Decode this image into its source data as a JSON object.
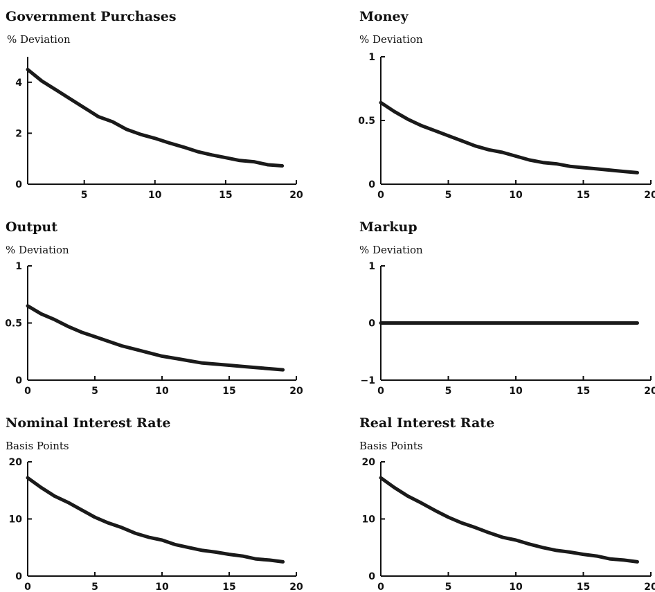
{
  "chart_data": [
    {
      "type": "line",
      "title": "Government Purchases",
      "ylabel": "% Deviation",
      "xlabel": "",
      "xlim": [
        1,
        20
      ],
      "ylim": [
        0,
        5
      ],
      "xticks": [
        5,
        10,
        15,
        20
      ],
      "yticks": [
        0,
        2,
        4
      ],
      "series": [
        {
          "x": [
            1,
            2,
            3,
            4,
            5,
            6,
            7,
            8,
            9,
            10,
            11,
            12,
            13,
            14,
            15,
            16,
            17,
            18,
            19
          ],
          "values": [
            4.5,
            4.05,
            3.7,
            3.35,
            3.0,
            2.65,
            2.45,
            2.15,
            1.95,
            1.8,
            1.62,
            1.46,
            1.28,
            1.15,
            1.04,
            0.93,
            0.88,
            0.76,
            0.72
          ]
        }
      ]
    },
    {
      "type": "line",
      "title": "Money",
      "ylabel": "% Deviation",
      "xlabel": "",
      "xlim": [
        0,
        20
      ],
      "ylim": [
        0,
        1
      ],
      "xticks": [
        0,
        5,
        10,
        15,
        20
      ],
      "yticks": [
        0,
        0.5,
        1
      ],
      "series": [
        {
          "x": [
            0,
            1,
            2,
            3,
            4,
            5,
            6,
            7,
            8,
            9,
            10,
            11,
            12,
            13,
            14,
            15,
            16,
            17,
            18,
            19
          ],
          "values": [
            0.64,
            0.57,
            0.51,
            0.46,
            0.42,
            0.38,
            0.34,
            0.3,
            0.27,
            0.25,
            0.22,
            0.19,
            0.17,
            0.16,
            0.14,
            0.13,
            0.12,
            0.11,
            0.1,
            0.09
          ]
        }
      ]
    },
    {
      "type": "line",
      "title": "Output",
      "ylabel": "% Deviation",
      "xlabel": "",
      "xlim": [
        0,
        20
      ],
      "ylim": [
        0,
        1
      ],
      "xticks": [
        0,
        5,
        10,
        15,
        20
      ],
      "yticks": [
        0,
        0.5,
        1
      ],
      "series": [
        {
          "x": [
            0,
            1,
            2,
            3,
            4,
            5,
            6,
            7,
            8,
            9,
            10,
            11,
            12,
            13,
            14,
            15,
            16,
            17,
            18,
            19
          ],
          "values": [
            0.65,
            0.58,
            0.53,
            0.47,
            0.42,
            0.38,
            0.34,
            0.3,
            0.27,
            0.24,
            0.21,
            0.19,
            0.17,
            0.15,
            0.14,
            0.13,
            0.12,
            0.11,
            0.1,
            0.09
          ]
        }
      ]
    },
    {
      "type": "line",
      "title": "Markup",
      "ylabel": "% Deviation",
      "xlabel": "",
      "xlim": [
        0,
        20
      ],
      "ylim": [
        -1,
        1
      ],
      "xticks": [
        0,
        5,
        10,
        15,
        20
      ],
      "yticks": [
        -1,
        0,
        1
      ],
      "series": [
        {
          "x": [
            0,
            1,
            2,
            3,
            4,
            5,
            6,
            7,
            8,
            9,
            10,
            11,
            12,
            13,
            14,
            15,
            16,
            17,
            18,
            19
          ],
          "values": [
            0,
            0,
            0,
            0,
            0,
            0,
            0,
            0,
            0,
            0,
            0,
            0,
            0,
            0,
            0,
            0,
            0,
            0,
            0,
            0
          ]
        }
      ]
    },
    {
      "type": "line",
      "title": "Nominal Interest Rate",
      "ylabel": "Basis Points",
      "xlabel": "",
      "xlim": [
        0,
        20
      ],
      "ylim": [
        0,
        20
      ],
      "xticks": [
        0,
        5,
        10,
        15,
        20
      ],
      "yticks": [
        0,
        10,
        20
      ],
      "series": [
        {
          "x": [
            0,
            1,
            2,
            3,
            4,
            5,
            6,
            7,
            8,
            9,
            10,
            11,
            12,
            13,
            14,
            15,
            16,
            17,
            18,
            19
          ],
          "values": [
            17.2,
            15.5,
            14.0,
            12.9,
            11.6,
            10.3,
            9.3,
            8.5,
            7.5,
            6.8,
            6.3,
            5.5,
            5.0,
            4.5,
            4.2,
            3.8,
            3.5,
            3.0,
            2.8,
            2.5
          ]
        }
      ]
    },
    {
      "type": "line",
      "title": "Real Interest Rate",
      "ylabel": "Basis Points",
      "xlabel": "",
      "xlim": [
        0,
        20
      ],
      "ylim": [
        0,
        20
      ],
      "xticks": [
        0,
        5,
        10,
        15,
        20
      ],
      "yticks": [
        0,
        10,
        20
      ],
      "series": [
        {
          "x": [
            0,
            1,
            2,
            3,
            4,
            5,
            6,
            7,
            8,
            9,
            10,
            11,
            12,
            13,
            14,
            15,
            16,
            17,
            18,
            19
          ],
          "values": [
            17.2,
            15.5,
            14.0,
            12.8,
            11.5,
            10.3,
            9.3,
            8.5,
            7.6,
            6.8,
            6.3,
            5.6,
            5.0,
            4.5,
            4.2,
            3.8,
            3.5,
            3.0,
            2.8,
            2.5
          ]
        }
      ]
    }
  ]
}
